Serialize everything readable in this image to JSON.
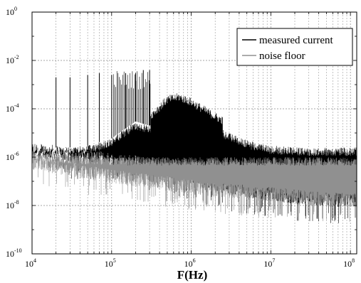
{
  "chart_data": {
    "type": "line",
    "title": "",
    "xlabel": "F(Hz)",
    "ylabel": "",
    "x_scale": "log",
    "y_scale": "log",
    "xlim": [
      10000,
      120000000
    ],
    "ylim": [
      1e-10,
      1
    ],
    "x_ticks": [
      {
        "base": "10",
        "exp": "4"
      },
      {
        "base": "10",
        "exp": "5"
      },
      {
        "base": "10",
        "exp": "6"
      },
      {
        "base": "10",
        "exp": "7"
      },
      {
        "base": "10",
        "exp": "8"
      }
    ],
    "y_ticks": [
      {
        "base": "10",
        "exp": "0"
      },
      {
        "base": "10",
        "exp": "-2"
      },
      {
        "base": "10",
        "exp": "-4"
      },
      {
        "base": "10",
        "exp": "-6"
      },
      {
        "base": "10",
        "exp": "-8"
      },
      {
        "base": "10",
        "exp": "-10"
      }
    ],
    "grid": true,
    "legend_position": "top-right",
    "series": [
      {
        "name": "measured current",
        "color": "#000000",
        "x": [
          10000,
          20000,
          30000,
          50000,
          100000,
          200000,
          300000,
          500000,
          700000,
          1000000,
          2000000,
          3000000,
          5000000,
          10000000,
          30000000,
          100000000
        ],
        "envelope_high": [
          2e-06,
          2.5e-06,
          2.5e-06,
          3e-06,
          6e-06,
          3e-05,
          2e-05,
          0.0001,
          0.00013,
          8e-05,
          2e-05,
          1e-05,
          5e-06,
          3e-06,
          2.5e-06,
          2.5e-06
        ],
        "envelope_low": [
          1e-06,
          8e-07,
          6e-07,
          5e-07,
          4e-07,
          3e-07,
          2e-07,
          1.5e-07,
          1e-07,
          7e-08,
          4e-08,
          3e-08,
          2e-08,
          1.5e-08,
          1e-08,
          8e-09
        ],
        "harmonics": {
          "fundamental": 10000,
          "low_band": {
            "x": [
              20000,
              30000,
              50000,
              70000,
              100000,
              150000,
              200000,
              250000,
              300000
            ],
            "y": [
              0.002,
              0.002,
              0.0025,
              0.003,
              0.0025,
              0.003,
              0.003,
              0.004,
              0.004
            ]
          }
        }
      },
      {
        "name": "noise floor",
        "color": "#909090",
        "x": [
          10000,
          30000,
          100000,
          300000,
          1000000,
          3000000,
          10000000,
          30000000,
          100000000
        ],
        "envelope_high": [
          1.5e-06,
          1.2e-06,
          1e-06,
          1e-06,
          1e-06,
          1e-06,
          1e-06,
          1e-06,
          1e-06
        ],
        "envelope_low": [
          3e-07,
          1.5e-07,
          8e-08,
          5e-08,
          3e-08,
          2e-08,
          1.5e-08,
          1e-08,
          8e-09
        ]
      }
    ]
  }
}
